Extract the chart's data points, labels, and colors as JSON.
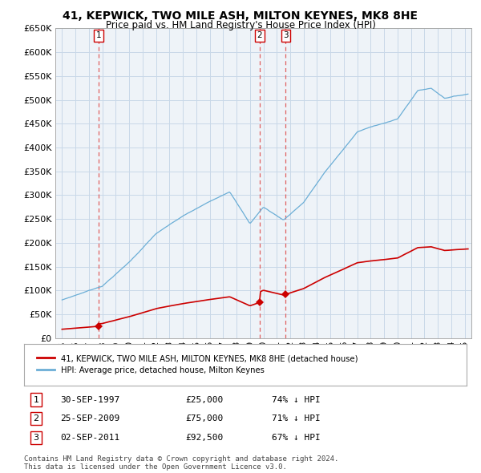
{
  "title": "41, KEPWICK, TWO MILE ASH, MILTON KEYNES, MK8 8HE",
  "subtitle": "Price paid vs. HM Land Registry's House Price Index (HPI)",
  "ylim": [
    0,
    650000
  ],
  "yticks": [
    0,
    50000,
    100000,
    150000,
    200000,
    250000,
    300000,
    350000,
    400000,
    450000,
    500000,
    550000,
    600000,
    650000
  ],
  "xlim_start": 1994.5,
  "xlim_end": 2025.5,
  "sale_dates": [
    1997.75,
    2009.72,
    2011.67
  ],
  "sale_prices": [
    25000,
    75000,
    92500
  ],
  "sale_labels": [
    "1",
    "2",
    "3"
  ],
  "hpi_color": "#6baed6",
  "price_color": "#cc0000",
  "dashed_line_color": "#e06060",
  "legend_label_price": "41, KEPWICK, TWO MILE ASH, MILTON KEYNES, MK8 8HE (detached house)",
  "legend_label_hpi": "HPI: Average price, detached house, Milton Keynes",
  "table_rows": [
    {
      "num": "1",
      "date": "30-SEP-1997",
      "price": "£25,000",
      "pct": "74% ↓ HPI"
    },
    {
      "num": "2",
      "date": "25-SEP-2009",
      "price": "£75,000",
      "pct": "71% ↓ HPI"
    },
    {
      "num": "3",
      "date": "02-SEP-2011",
      "price": "£92,500",
      "pct": "67% ↓ HPI"
    }
  ],
  "footer": "Contains HM Land Registry data © Crown copyright and database right 2024.\nThis data is licensed under the Open Government Licence v3.0.",
  "background_color": "#ffffff",
  "plot_bg_color": "#eef3f8",
  "grid_color": "#c8d8e8"
}
